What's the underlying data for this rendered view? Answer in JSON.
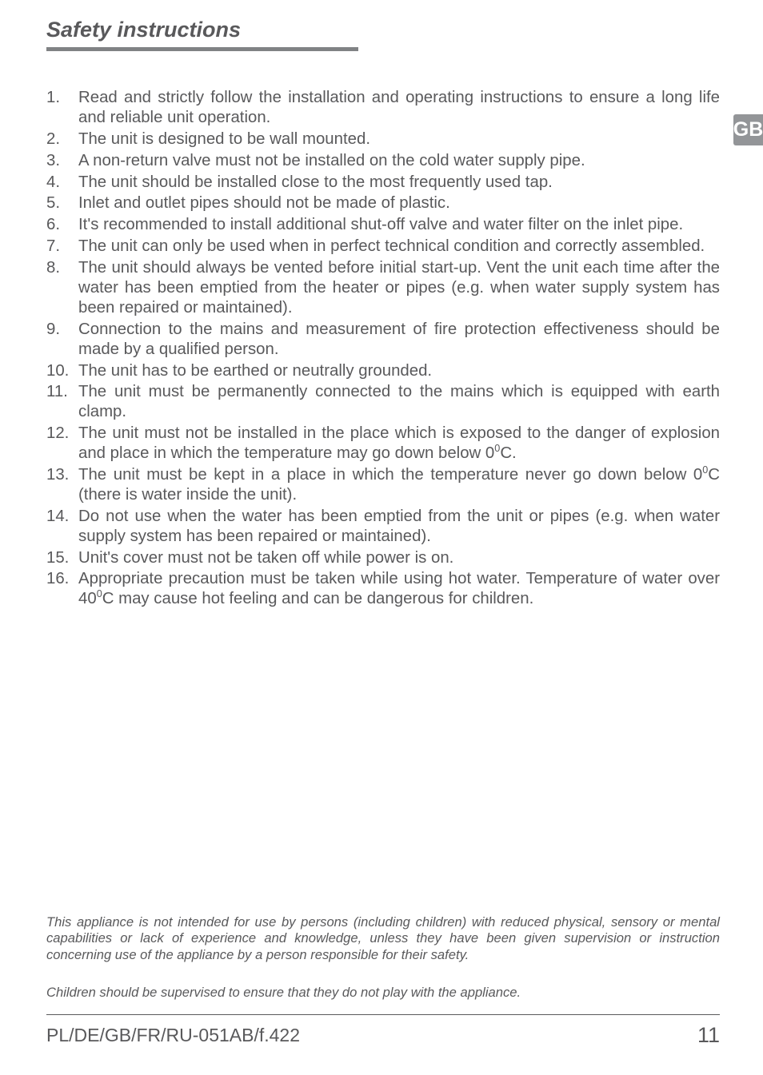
{
  "title": "Safety instructions",
  "tab": "GB",
  "colors": {
    "text": "#59595b",
    "rule": "#808284",
    "tab_bg": "#939598",
    "tab_fg": "#ffffff",
    "bg": "#ffffff"
  },
  "typography": {
    "title_pt": 27,
    "body_pt": 20.4,
    "disclaimer_pt": 16.6,
    "footer_pt": 23,
    "pagenum_pt": 27
  },
  "items": [
    {
      "n": "1.",
      "t": "Read and strictly follow the installation and operating instructions to ensure a long life and reliable unit operation."
    },
    {
      "n": "2.",
      "t": "The unit is designed to be wall mounted."
    },
    {
      "n": "3.",
      "t": "A non-return valve must not be installed on the cold water supply pipe."
    },
    {
      "n": "4.",
      "t": "The unit should be installed close to the most frequently used tap."
    },
    {
      "n": "5.",
      "t": "Inlet and outlet pipes should not be made of plastic."
    },
    {
      "n": "6.",
      "t": "It's recommended to install additional shut-off valve and water filter on the inlet pipe."
    },
    {
      "n": "7.",
      "t": "The unit can only be used when in perfect technical condition and correctly assembled."
    },
    {
      "n": "8.",
      "t": "The unit should always be vented before initial start-up. Vent the unit each time after the water has been emptied from the heater or pipes (e.g. when water supply system has been repaired or maintained)."
    },
    {
      "n": "9.",
      "t": "Connection to the mains and measurement of fire protection effectiveness should be made by a qualified person."
    },
    {
      "n": "10.",
      "t": "The unit has to be earthed or neutrally grounded."
    },
    {
      "n": "11.",
      "t": "The unit must be permanently connected to the mains which is equipped with earth clamp."
    },
    {
      "n": "12.",
      "t": "The unit must not be installed in the place which is exposed to the danger of explosion and place in which the temperature may go down below 0{{SUP0}}C."
    },
    {
      "n": "13.",
      "t": "The unit must be kept in a place in which the temperature never go down below 0{{SUP0}}C (there is water inside the unit)."
    },
    {
      "n": "14.",
      "t": "Do not use when the water has been emptied from the unit or pipes (e.g. when water supply system has been repaired or maintained)."
    },
    {
      "n": "15.",
      "t": "Unit's cover must not be taken off while power is on."
    },
    {
      "n": "16.",
      "t": "Appropriate precaution must be taken while using hot water. Temperature of water over 40{{SUP0}}C may cause hot feeling and can be dangerous for children."
    }
  ],
  "disclaimer1": "This appliance is not intended for use by persons (including children) with reduced physical, sensory or mental capabilities or lack of experience and knowledge, unless they have been given supervision or instruction concerning use of the appliance by a person responsible for their safety.",
  "disclaimer2": "Children should be supervised to ensure that they do not play with the appliance.",
  "footer": "PL/DE/GB/FR/RU-051AB/f.422",
  "pagenum": "11"
}
